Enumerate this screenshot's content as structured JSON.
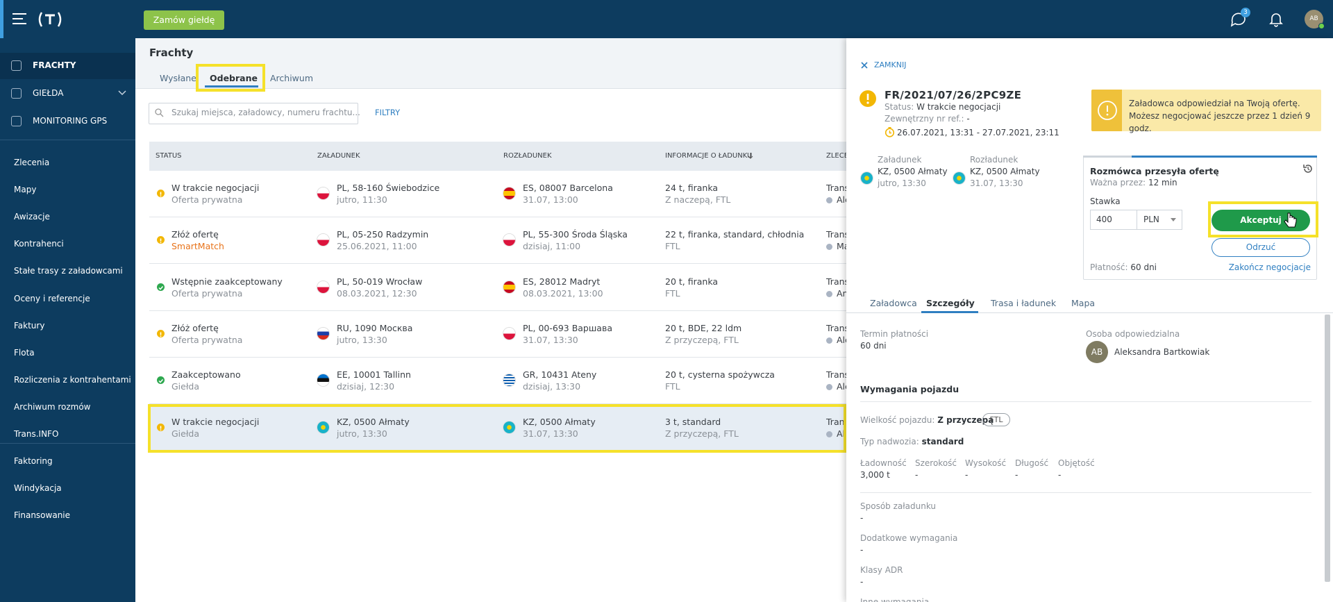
{
  "topbar": {
    "order_button": "Zamów giełdę",
    "messages_badge": "3",
    "avatar": "AB"
  },
  "sidebar": {
    "main": [
      "FRACHTY",
      "GIEŁDA",
      "MONITORING GPS"
    ],
    "menu": [
      "Zlecenia",
      "Mapy",
      "Awizacje",
      "Kontrahenci",
      "Stałe trasy z załadowcami",
      "Oceny i referencje",
      "Faktury",
      "Flota",
      "Rozliczenia z kontrahentami",
      "Archiwum rozmów",
      "Trans.INFO"
    ],
    "finance": [
      "Faktoring",
      "Windykacja",
      "Finansowanie"
    ]
  },
  "main": {
    "title": "Frachty",
    "tabs": [
      "Wysłane",
      "Odebrane",
      "Archiwum"
    ],
    "search_placeholder": "Szukaj miejsca, załadowcy, numeru frachtu...",
    "filters": "FILTRY",
    "table": {
      "columns": [
        "STATUS",
        "ZAŁADUNEK",
        "ROZŁADUNEK",
        "INFORMACJE O ŁADUNKU",
        "ZLECE"
      ],
      "rows": [
        {
          "status": "W trakcie negocjacji",
          "status_sub": "Oferta prywatna",
          "icon_color": "#f2b705",
          "loading": "PL, 58-160 Świebodzice",
          "loading_time": "jutro, 11:30",
          "unloading": "ES, 08007 Barcelona",
          "unloading_time": "31.07, 13:00",
          "cargo": "24 t, firanka",
          "cargo_sub": "Z naczepą, FTL",
          "client": "Trans",
          "contact": "Ale"
        },
        {
          "status": "Złóż ofertę",
          "status_sub": "SmartMatch",
          "status_sub_color": "#e8731a",
          "icon_color": "#f2b705",
          "loading": "PL, 05-250 Radzymin",
          "loading_time": "25.06.2021, 11:00",
          "unloading": "PL, 55-300 Środa Śląska",
          "unloading_time": "dzisiaj, 11:00",
          "cargo": "22 t, firanka, standard, chłodnia",
          "cargo_sub": "FTL",
          "client": "Trans",
          "contact": "Ma"
        },
        {
          "status": "Wstępnie zaakceptowany",
          "status_sub": "Oferta prywatna",
          "icon_color": "#2ea84f",
          "loading": "PL, 50-019 Wrocław",
          "loading_time": "08.03.2021, 12:30",
          "unloading": "ES, 28012 Madryt",
          "unloading_time": "08.03.2021, 13:00",
          "cargo": "20 t, firanka",
          "cargo_sub": "FTL",
          "client": "Trans",
          "contact": "An"
        },
        {
          "status": "Złóż ofertę",
          "status_sub": "Oferta prywatna",
          "icon_color": "#f2b705",
          "loading": "RU, 1090 Москва",
          "loading_time": "jutro, 13:30",
          "unloading": "PL, 00-693 Варшава",
          "unloading_time": "31.07, 13:30",
          "cargo": "20 t, BDE, 22 ldm",
          "cargo_sub": "Z przyczepą, FTL",
          "client": "Trans",
          "contact": "Ale"
        },
        {
          "status": "Zaakceptowano",
          "status_sub": "Giełda",
          "icon_color": "#2ea84f",
          "loading": "EE, 10001 Tallinn",
          "loading_time": "dzisiaj, 12:30",
          "unloading": "GR, 10431 Ateny",
          "unloading_time": "dzisiaj, 13:30",
          "cargo": "20 t, cysterna spożywcza",
          "cargo_sub": "FTL",
          "client": "Trans",
          "contact": "Ale"
        },
        {
          "status": "W trakcie negocjacji",
          "status_sub": "Giełda",
          "icon_color": "#f2b705",
          "loading": "KZ, 0500 Ałmaty",
          "loading_time": "jutro, 13:30",
          "unloading": "KZ, 0500 Ałmaty",
          "unloading_time": "31.07, 13:30",
          "cargo": "3 t, standard",
          "cargo_sub": "Z przyczepą, FTL",
          "client": "Trans",
          "contact": "Ale"
        }
      ]
    }
  },
  "panel": {
    "close": "ZAMKNIJ",
    "number": "FR/2021/07/26/2PC9ZE",
    "status_label": "Status:",
    "status": "W trakcie negocjacji",
    "ref_label": "Zewnętrzny nr ref.:",
    "ref": "-",
    "period": "26.07.2021, 13:31 - 27.07.2021, 23:11",
    "loading_label": "Załadunek",
    "loading": "KZ, 0500 Ałmaty",
    "loading_time": "jutro, 13:30",
    "unloading_label": "Rozładunek",
    "unloading": "KZ, 0500 Ałmaty",
    "unloading_time": "31.07, 13:30",
    "alert": "Załadowca odpowiedział na Twoją ofertę. Możesz negocjować jeszcze przez 1 dzień 9 godz.",
    "offer": {
      "title": "Rozmówca przesyła ofertę",
      "valid_label": "Ważna przez:",
      "valid": "12 min",
      "rate_label": "Stawka",
      "rate": "400",
      "currency": "PLN",
      "accept": "Akceptuj",
      "reject": "Odrzuć",
      "payment_label": "Płatność:",
      "payment": "60 dni",
      "end": "Zakończ negocjacje"
    },
    "tabs": [
      "Załadowca",
      "Szczegóły",
      "Trasa i ładunek",
      "Mapa"
    ],
    "details": {
      "payment_term_label": "Termin płatności",
      "payment_term": "60 dni",
      "person_label": "Osoba odpowiedzialna",
      "person_initials": "AB",
      "person": "Aleksandra Bartkowiak",
      "vehicle_heading": "Wymagania pojazdu",
      "size_label": "Wielkość pojazdu:",
      "size": "Z przyczepą",
      "size_badge": "FTL",
      "body_label": "Typ nadwozia:",
      "body": "standard",
      "dimensions": [
        {
          "label": "Ładowność",
          "value": "3,000 t"
        },
        {
          "label": "Szerokość",
          "value": "-"
        },
        {
          "label": "Wysokość",
          "value": "-"
        },
        {
          "label": "Długość",
          "value": "-"
        },
        {
          "label": "Objętość",
          "value": "-"
        }
      ],
      "sections": [
        {
          "label": "Sposób załadunku",
          "value": "-"
        },
        {
          "label": "Dodatkowe wymagania",
          "value": "-"
        },
        {
          "label": "Klasy ADR",
          "value": "-"
        },
        {
          "label": "Inne wymagania"
        }
      ]
    }
  }
}
